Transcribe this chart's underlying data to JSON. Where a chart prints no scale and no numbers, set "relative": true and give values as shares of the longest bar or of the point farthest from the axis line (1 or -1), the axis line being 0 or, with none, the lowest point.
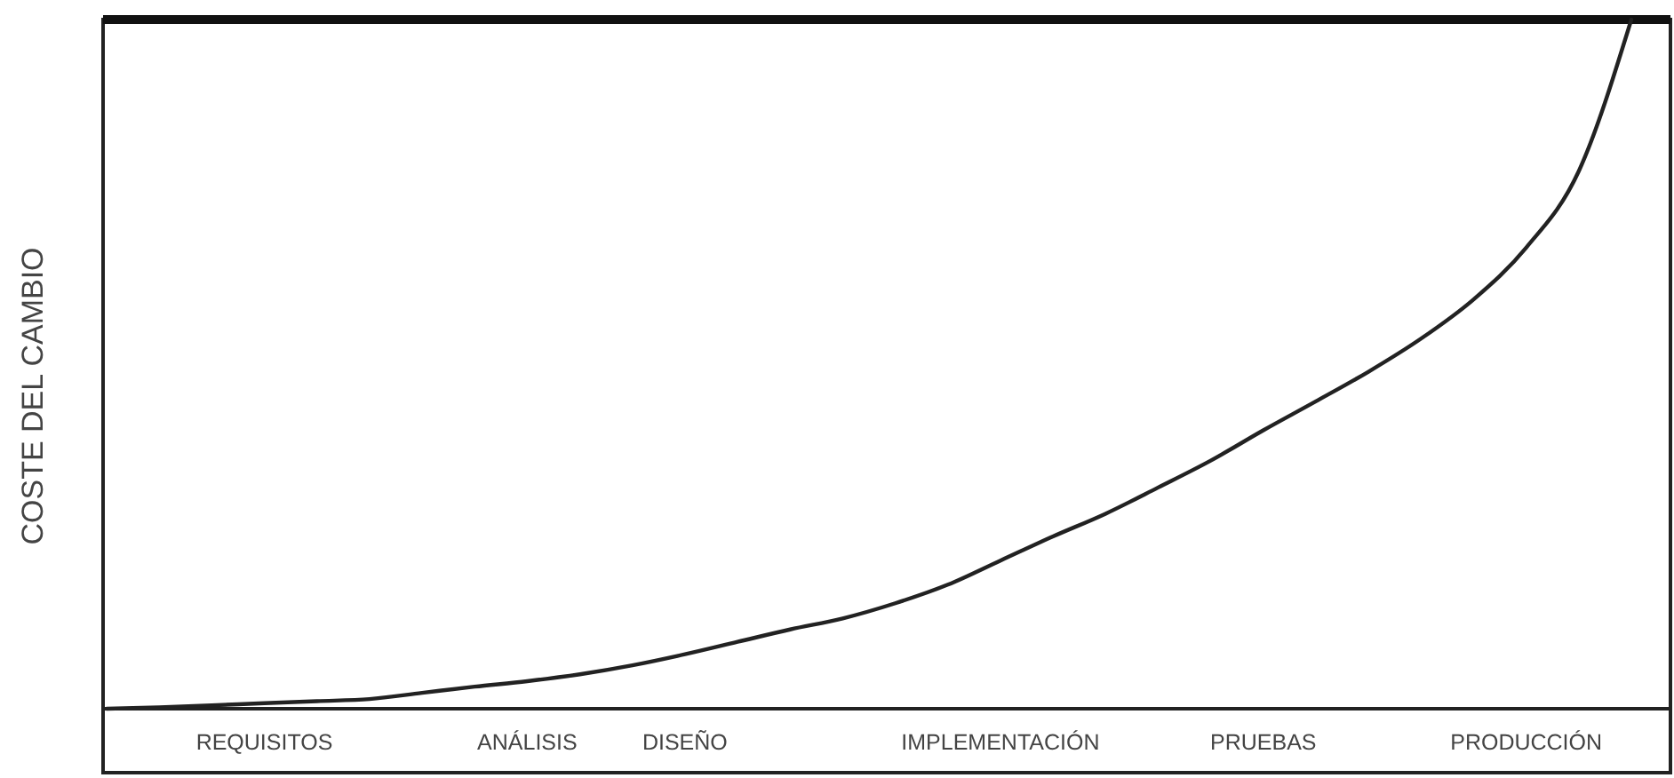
{
  "chart_data": {
    "type": "line",
    "relative": true,
    "ylabel": "COSTE DEL CAMBIO",
    "categories": [
      null,
      null,
      null,
      "REQUISITOS",
      null,
      null,
      null,
      null,
      "ANÁLISIS",
      null,
      null,
      "DISEÑO",
      null,
      null,
      null,
      null,
      null,
      "IMPLEMENTACIÓN",
      null,
      null,
      null,
      null,
      "PRUEBAS",
      null,
      null,
      null,
      null,
      "PRODUCCIÓN",
      null,
      null
    ],
    "series": [
      {
        "color": "#222222",
        "values": [
          0,
          0.002,
          0.005,
          0.008,
          0.011,
          0.014,
          0.023,
          0.032,
          0.04,
          0.05,
          0.063,
          0.079,
          0.097,
          0.115,
          0.131,
          0.153,
          0.18,
          0.215,
          0.25,
          0.283,
          0.321,
          0.36,
          0.404,
          0.446,
          0.489,
          0.537,
          0.594,
          0.669,
          0.78,
          1
        ]
      }
    ],
    "grid": false,
    "marker": "none",
    "line_style": "solid"
  }
}
